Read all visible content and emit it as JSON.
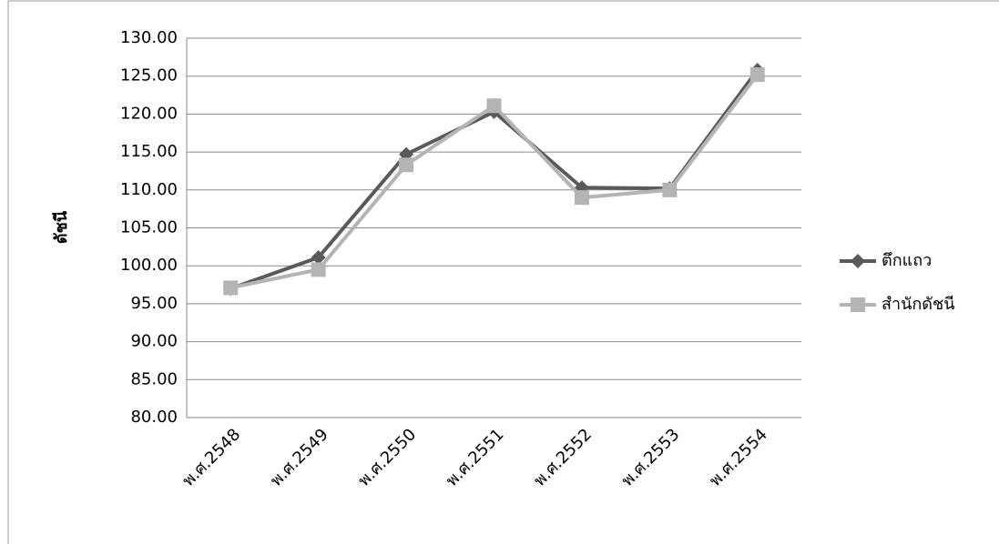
{
  "chart_data": {
    "type": "line",
    "y_label": "ดัชนี",
    "categories": [
      "พ.ศ.2548",
      "พ.ศ.2549",
      "พ.ศ.2550",
      "พ.ศ.2551",
      "พ.ศ.2552",
      "พ.ศ.2553",
      "พ.ศ.2554"
    ],
    "series": [
      {
        "name": "ตึกแถว",
        "color": "#5a5a5a",
        "marker": "diamond",
        "values": [
          97.0,
          101.1,
          114.7,
          120.3,
          110.3,
          110.2,
          125.8
        ]
      },
      {
        "name": "สำนักดัชนี",
        "color": "#b4b4b4",
        "marker": "square",
        "values": [
          97.1,
          99.5,
          113.3,
          121.1,
          109.0,
          110.0,
          125.2
        ]
      }
    ],
    "ylim": [
      80,
      130
    ],
    "yticks": [
      {
        "value": 80,
        "label": "80.00"
      },
      {
        "value": 85,
        "label": "85.00"
      },
      {
        "value": 90,
        "label": "90.00"
      },
      {
        "value": 95,
        "label": "95.00"
      },
      {
        "value": 100,
        "label": "100.00"
      },
      {
        "value": 105,
        "label": "105.00"
      },
      {
        "value": 110,
        "label": "110.00"
      },
      {
        "value": 115,
        "label": "115.00"
      },
      {
        "value": 120,
        "label": "120.00"
      },
      {
        "value": 125,
        "label": "125.00"
      },
      {
        "value": 130,
        "label": "130.00"
      }
    ],
    "grid": true,
    "legend": "right"
  }
}
